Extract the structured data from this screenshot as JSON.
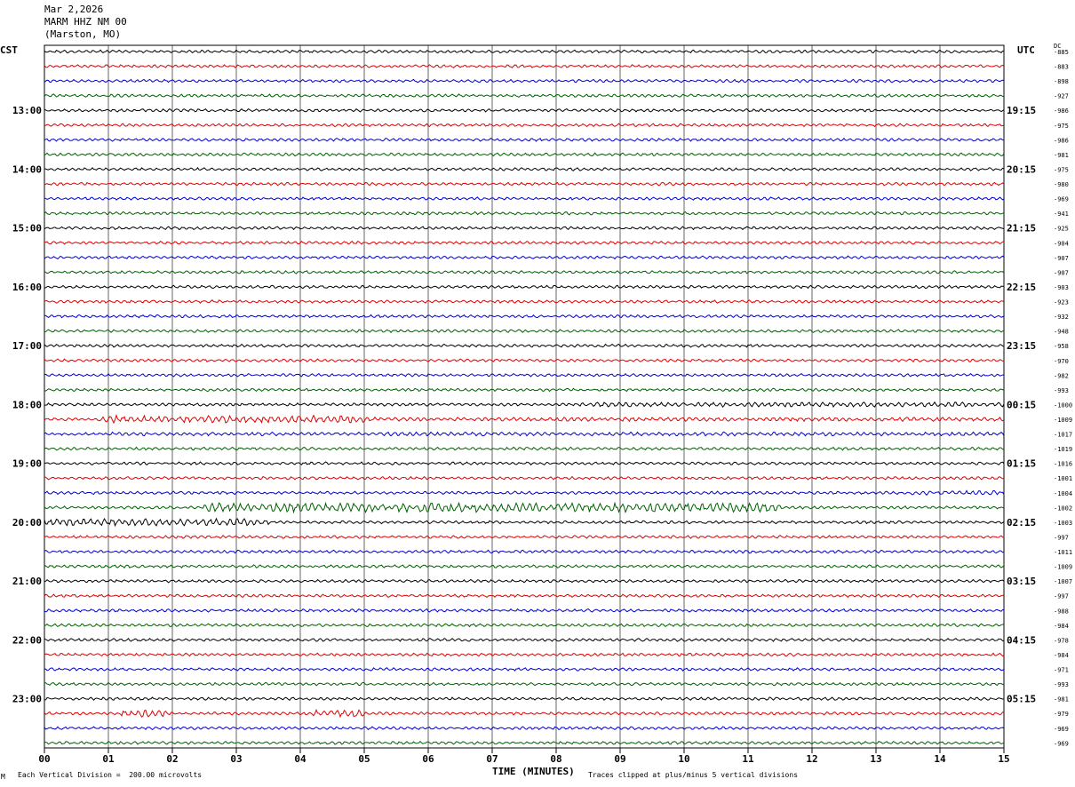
{
  "header": {
    "date": "Mar 2,2026",
    "station": "MARM HHZ NM 00",
    "location": "(Marston, MO)"
  },
  "left_tz": "CST",
  "right_tz": "UTC",
  "dc_label": "DC",
  "footer": {
    "scale": "Each Vertical Division =  200.00 microvolts",
    "clip": "Traces clipped at plus/minus 5 vertical divisions",
    "mark": "M"
  },
  "colors": {
    "trace": [
      "#000000",
      "#e00000",
      "#0000d0",
      "#006000"
    ],
    "grid": "#000000"
  },
  "chart_data": {
    "type": "line",
    "xlabel": "TIME (MINUTES)",
    "xticks": [
      "00",
      "01",
      "02",
      "03",
      "04",
      "05",
      "06",
      "07",
      "08",
      "09",
      "10",
      "11",
      "12",
      "13",
      "14",
      "15"
    ],
    "xlim": [
      0,
      15
    ],
    "rows": 48,
    "left_time_labels": [
      "13:00",
      "14:00",
      "15:00",
      "16:00",
      "17:00",
      "18:00",
      "19:00",
      "20:00",
      "21:00",
      "22:00",
      "23:00"
    ],
    "right_time_labels": [
      "19:15",
      "20:15",
      "21:15",
      "22:15",
      "23:15",
      "00:15",
      "01:15",
      "02:15",
      "03:15",
      "04:15",
      "05:15"
    ],
    "label_first_row": 4,
    "rows_per_label": 4,
    "dc_offsets": [
      "-885",
      "-883",
      "-898",
      "-927",
      "-986",
      "-975",
      "-986",
      "-981",
      "-975",
      "-980",
      "-969",
      "-941",
      "-925",
      "-904",
      "-907",
      "-907",
      "-903",
      "-923",
      "-932",
      "-948",
      "-958",
      "-970",
      "-982",
      "-993",
      "-1000",
      "-1009",
      "-1017",
      "-1019",
      "-1016",
      "-1001",
      "-1004",
      "-1002",
      "-1003",
      "-997",
      "-1011",
      "-1009",
      "-1007",
      "-997",
      "-988",
      "-984",
      "-978",
      "-984",
      "-971",
      "-993",
      "-981",
      "-979",
      "-969",
      "-969"
    ],
    "events": [
      {
        "row": 24,
        "start_min": 8.3,
        "end_min": 15.0,
        "amp": 1.6
      },
      {
        "row": 25,
        "start_min": 0.8,
        "end_min": 5.0,
        "amp": 2.6
      },
      {
        "row": 25,
        "start_min": 5.0,
        "end_min": 15.0,
        "amp": 1.4
      },
      {
        "row": 26,
        "start_min": 1.0,
        "end_min": 15.0,
        "amp": 1.3
      },
      {
        "row": 30,
        "start_min": 13.5,
        "end_min": 15.0,
        "amp": 1.5
      },
      {
        "row": 31,
        "start_min": 2.5,
        "end_min": 11.5,
        "amp": 3.2
      },
      {
        "row": 32,
        "start_min": 0.0,
        "end_min": 3.5,
        "amp": 2.4
      },
      {
        "row": 45,
        "start_min": 1.2,
        "end_min": 1.9,
        "amp": 2.4
      },
      {
        "row": 45,
        "start_min": 4.2,
        "end_min": 5.0,
        "amp": 2.4
      }
    ]
  }
}
